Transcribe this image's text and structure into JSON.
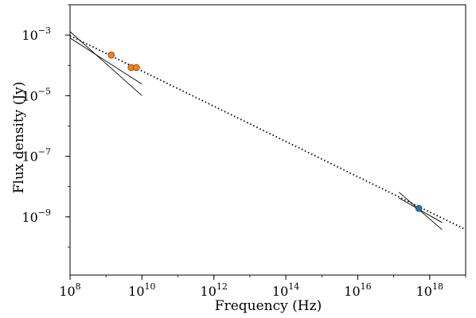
{
  "chart_data": {
    "type": "scatter",
    "xlabel": "Frequency (Hz)",
    "ylabel": "Flux density (Jy)",
    "xscale": "log",
    "yscale": "log",
    "xlim": [
      100000000.0,
      1e+19
    ],
    "ylim": [
      1.2e-11,
      0.01
    ],
    "grid": false,
    "x_ticks": [
      {
        "base": "10",
        "exp": "8",
        "value": 100000000.0
      },
      {
        "base": "10",
        "exp": "10",
        "value": 10000000000.0
      },
      {
        "base": "10",
        "exp": "12",
        "value": 1000000000000.0
      },
      {
        "base": "10",
        "exp": "14",
        "value": 100000000000000.0
      },
      {
        "base": "10",
        "exp": "16",
        "value": 1e+16
      },
      {
        "base": "10",
        "exp": "18",
        "value": 1e+18
      }
    ],
    "y_ticks": [
      {
        "base": "10",
        "exp": "−3",
        "value": 0.001
      },
      {
        "base": "10",
        "exp": "−5",
        "value": 1e-05
      },
      {
        "base": "10",
        "exp": "−7",
        "value": 1e-07
      },
      {
        "base": "10",
        "exp": "−9",
        "value": 1e-09
      }
    ],
    "series": [
      {
        "color": "#ff7f0e",
        "points": [
          {
            "x": 1400000000.0,
            "y": 0.00022
          },
          {
            "x": 5000000000.0,
            "y": 8.5e-05
          },
          {
            "x": 7000000000.0,
            "y": 8.5e-05
          }
        ]
      },
      {
        "color": "#1f77b4",
        "points": [
          {
            "x": 5e+17,
            "y": 1.9e-09
          }
        ]
      }
    ],
    "fit_line": {
      "style": "dotted",
      "color": "#000000",
      "points": [
        [
          100000000.0,
          0.00095
        ],
        [
          1e+19,
          3.8e-10
        ]
      ]
    },
    "slope_lines": [
      {
        "color": "#000000",
        "points": [
          [
            100000000.0,
            0.0013
          ],
          [
            10000000000.0,
            1e-05
          ]
        ]
      },
      {
        "color": "#000000",
        "points": [
          [
            100000000.0,
            0.0008
          ],
          [
            10000000000.0,
            2.4e-05
          ]
        ]
      },
      {
        "color": "#000000",
        "points": [
          [
            1.4e+17,
            6.5e-09
          ],
          [
            2.2e+18,
            3.8e-10
          ]
        ]
      },
      {
        "color": "#000000",
        "points": [
          [
            1.4e+17,
            4.2e-09
          ],
          [
            2.2e+18,
            6.5e-10
          ]
        ]
      }
    ]
  }
}
